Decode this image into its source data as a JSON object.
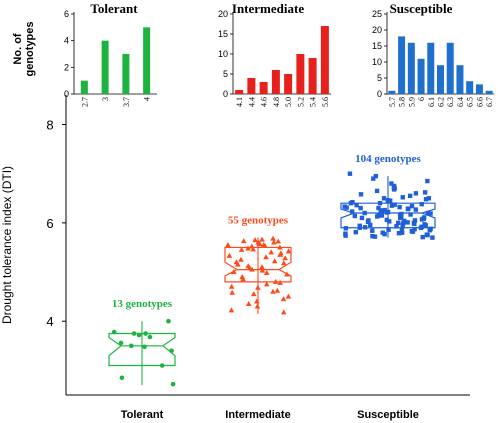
{
  "colors": {
    "tolerant": "#1db33f",
    "intermediate": "#ff4a1c",
    "intermediate_bar": "#e8201c",
    "susceptible": "#1f5fd8",
    "susceptible_bar": "#1f6fcf",
    "axis": "#000000"
  },
  "chart_data": [
    {
      "type": "bar",
      "title": "Tolerant",
      "ylabel": "No. of genotypes",
      "categories": [
        "2.7",
        "3",
        "3.7",
        "4"
      ],
      "values": [
        1,
        4,
        3,
        5
      ],
      "ylim": [
        0,
        6
      ],
      "yticks": [
        0,
        2,
        4,
        6
      ],
      "color_key": "tolerant",
      "grid": false
    },
    {
      "type": "bar",
      "title": "Intermediate",
      "categories": [
        "4.1",
        "4.4",
        "4.6",
        "4.8",
        "5.0",
        "5.2",
        "5.4",
        "5.6"
      ],
      "values": [
        1,
        4,
        3,
        6,
        5,
        10,
        9,
        17
      ],
      "ylim": [
        0,
        20
      ],
      "yticks": [
        0,
        5,
        10,
        15,
        20
      ],
      "color_key": "intermediate_bar",
      "grid": false
    },
    {
      "type": "bar",
      "title": "Susceptible",
      "categories": [
        "5.7",
        "5.8",
        "5.9",
        "6",
        "6.1",
        "6.2",
        "6.3",
        "6.4",
        "6.5",
        "6.6",
        "6.7"
      ],
      "values": [
        1,
        18,
        16,
        11,
        16,
        9,
        16,
        9,
        4,
        3,
        1
      ],
      "ylim": [
        0,
        25
      ],
      "yticks": [
        0,
        5,
        10,
        15,
        20,
        25
      ],
      "color_key": "susceptible_bar",
      "grid": false
    },
    {
      "type": "box",
      "ylabel": "Drought tolerance index (DTI)",
      "categories": [
        "Tolerant",
        "Intermediate",
        "Susceptible"
      ],
      "ylim": [
        2.5,
        8.6
      ],
      "yticks": [
        4,
        6,
        8
      ],
      "grid": false,
      "series": [
        {
          "category": "Tolerant",
          "label": "13 genotypes",
          "color_key": "tolerant",
          "marker": "circle",
          "q1": 3.1,
          "median": 3.5,
          "q3": 3.75,
          "notch_low": 3.3,
          "notch_high": 3.67,
          "whisker_low": 2.7,
          "whisker_high": 4.0,
          "points": [
            4.0,
            3.78,
            3.75,
            3.75,
            3.72,
            3.68,
            3.56,
            3.5,
            3.48,
            3.4,
            3.1,
            2.85,
            2.72
          ]
        },
        {
          "category": "Intermediate",
          "label": "55 genotypes",
          "color_key": "intermediate",
          "marker": "triangle",
          "q1": 4.8,
          "median": 5.05,
          "q3": 5.5,
          "notch_low": 4.92,
          "notch_high": 5.2,
          "whisker_low": 4.15,
          "whisker_high": 5.7,
          "points": [
            5.68,
            5.66,
            5.65,
            5.63,
            5.62,
            5.6,
            5.6,
            5.58,
            5.57,
            5.55,
            5.55,
            5.53,
            5.52,
            5.5,
            5.48,
            5.46,
            5.45,
            5.42,
            5.4,
            5.38,
            5.35,
            5.33,
            5.3,
            5.28,
            5.25,
            5.22,
            5.2,
            5.18,
            5.15,
            5.12,
            5.1,
            5.08,
            5.05,
            5.03,
            5.0,
            4.98,
            4.95,
            4.9,
            4.85,
            4.8,
            4.78,
            4.75,
            4.7,
            4.68,
            4.62,
            4.6,
            4.58,
            4.55,
            4.5,
            4.45,
            4.4,
            4.35,
            4.3,
            4.22,
            4.18
          ]
        },
        {
          "category": "Susceptible",
          "label": "104 genotypes",
          "color_key": "susceptible",
          "marker": "square",
          "q1": 5.9,
          "median": 6.2,
          "q3": 6.4,
          "notch_low": 6.1,
          "notch_high": 6.28,
          "whisker_low": 5.7,
          "whisker_high": 6.95,
          "points": [
            7.0,
            6.95,
            6.9,
            6.85,
            6.8,
            6.75,
            6.72,
            6.7,
            6.68,
            6.65,
            6.62,
            6.6,
            6.58,
            6.55,
            6.52,
            6.5,
            6.5,
            6.48,
            6.46,
            6.45,
            6.44,
            6.42,
            6.4,
            6.4,
            6.38,
            6.37,
            6.36,
            6.35,
            6.34,
            6.33,
            6.32,
            6.31,
            6.3,
            6.3,
            6.29,
            6.28,
            6.27,
            6.26,
            6.25,
            6.25,
            6.24,
            6.23,
            6.22,
            6.21,
            6.2,
            6.2,
            6.19,
            6.18,
            6.17,
            6.16,
            6.15,
            6.15,
            6.14,
            6.13,
            6.12,
            6.11,
            6.1,
            6.1,
            6.09,
            6.08,
            6.07,
            6.06,
            6.05,
            6.05,
            6.04,
            6.03,
            6.02,
            6.01,
            6.0,
            6.0,
            5.99,
            5.98,
            5.97,
            5.96,
            5.95,
            5.95,
            5.94,
            5.93,
            5.92,
            5.91,
            5.9,
            5.9,
            5.89,
            5.88,
            5.87,
            5.86,
            5.85,
            5.85,
            5.84,
            5.83,
            5.82,
            5.81,
            5.8,
            5.8,
            5.79,
            5.78,
            5.77,
            5.76,
            5.75,
            5.74,
            5.73,
            5.72,
            5.71,
            5.7
          ]
        }
      ]
    }
  ]
}
